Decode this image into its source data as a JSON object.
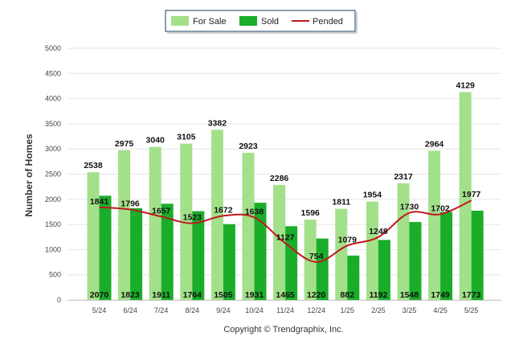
{
  "chart_data": {
    "type": "bar",
    "ylabel": "Number of Homes",
    "ylim": [
      0,
      5000
    ],
    "yticks": [
      0,
      500,
      1000,
      1500,
      2000,
      2500,
      3000,
      3500,
      4000,
      4500,
      5000
    ],
    "categories": [
      "5/24",
      "6/24",
      "7/24",
      "8/24",
      "9/24",
      "10/24",
      "11/24",
      "12/24",
      "1/25",
      "2/25",
      "3/25",
      "4/25",
      "5/25"
    ],
    "series": [
      {
        "name": "For Sale",
        "kind": "bar",
        "color": "#a3e08a",
        "values": [
          2538,
          2975,
          3040,
          3105,
          3382,
          2923,
          2286,
          1596,
          1811,
          1954,
          2317,
          2964,
          4129
        ]
      },
      {
        "name": "Sold",
        "kind": "bar",
        "color": "#1aad2a",
        "values": [
          2070,
          1823,
          1911,
          1764,
          1505,
          1931,
          1465,
          1220,
          882,
          1192,
          1548,
          1749,
          1773
        ]
      },
      {
        "name": "Pended",
        "kind": "line",
        "color": "#c0181f",
        "values": [
          1841,
          1796,
          1657,
          1523,
          1672,
          1638,
          1127,
          754,
          1079,
          1248,
          1730,
          1702,
          1977
        ]
      }
    ],
    "legend_position": "top-center",
    "grid": true
  },
  "credit": "Copyright © Trendgraphix, Inc."
}
